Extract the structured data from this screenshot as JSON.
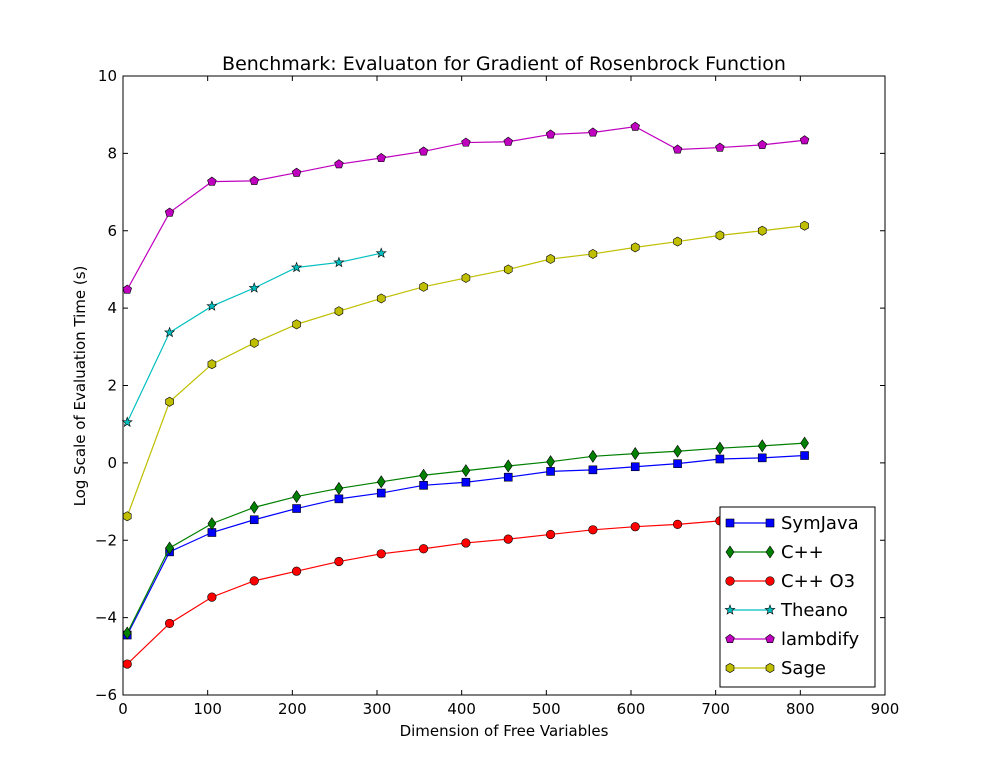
{
  "chart_data": {
    "type": "line",
    "title": "Benchmark: Evaluaton for Gradient of Rosenbrock Function",
    "xlabel": "Dimension of Free Variables",
    "ylabel": "Log Scale of Evaluation Time (s)",
    "xlim": [
      0,
      900
    ],
    "ylim": [
      -6,
      10
    ],
    "xticks": [
      0,
      100,
      200,
      300,
      400,
      500,
      600,
      700,
      800,
      900
    ],
    "yticks": [
      -6,
      -4,
      -2,
      0,
      2,
      4,
      6,
      8,
      10
    ],
    "grid": false,
    "legend_position": "lower-right",
    "series": [
      {
        "name": "SymJava",
        "color": "#0000ff",
        "marker": "square",
        "x": [
          5,
          55,
          105,
          155,
          205,
          255,
          305,
          355,
          405,
          455,
          505,
          555,
          605,
          655,
          705,
          755,
          805
        ],
        "y": [
          -4.45,
          -2.3,
          -1.8,
          -1.47,
          -1.18,
          -0.93,
          -0.78,
          -0.58,
          -0.5,
          -0.37,
          -0.22,
          -0.18,
          -0.1,
          -0.02,
          0.1,
          0.13,
          0.19
        ]
      },
      {
        "name": "C++",
        "color": "#008000",
        "marker": "diamond",
        "x": [
          5,
          55,
          105,
          155,
          205,
          255,
          305,
          355,
          405,
          455,
          505,
          555,
          605,
          655,
          705,
          755,
          805
        ],
        "y": [
          -4.4,
          -2.2,
          -1.57,
          -1.15,
          -0.87,
          -0.66,
          -0.49,
          -0.32,
          -0.2,
          -0.08,
          0.03,
          0.17,
          0.24,
          0.3,
          0.38,
          0.44,
          0.51
        ]
      },
      {
        "name": "C++ O3",
        "color": "#ff0000",
        "marker": "circle",
        "x": [
          5,
          55,
          105,
          155,
          205,
          255,
          305,
          355,
          405,
          455,
          505,
          555,
          605,
          655,
          705,
          755,
          805
        ],
        "y": [
          -5.2,
          -4.15,
          -3.47,
          -3.05,
          -2.8,
          -2.55,
          -2.35,
          -2.22,
          -2.07,
          -1.97,
          -1.85,
          -1.73,
          -1.65,
          -1.59,
          -1.5,
          -1.44,
          -1.38
        ]
      },
      {
        "name": "Theano",
        "color": "#00bfbf",
        "marker": "star",
        "x": [
          5,
          55,
          105,
          155,
          205,
          255,
          305
        ],
        "y": [
          1.05,
          3.37,
          4.05,
          4.52,
          5.05,
          5.18,
          5.42
        ]
      },
      {
        "name": "lambdify",
        "color": "#bf00bf",
        "marker": "pentagon",
        "x": [
          5,
          55,
          105,
          155,
          205,
          255,
          305,
          355,
          405,
          455,
          505,
          555,
          605,
          655,
          705,
          755,
          805
        ],
        "y": [
          4.48,
          6.47,
          7.27,
          7.29,
          7.5,
          7.72,
          7.88,
          8.05,
          8.28,
          8.3,
          8.49,
          8.54,
          8.69,
          8.1,
          8.15,
          8.22,
          8.34
        ]
      },
      {
        "name": "Sage",
        "color": "#bfbf00",
        "marker": "hexagon",
        "x": [
          5,
          55,
          105,
          155,
          205,
          255,
          305,
          355,
          405,
          455,
          505,
          555,
          605,
          655,
          705,
          755,
          805
        ],
        "y": [
          -1.38,
          1.58,
          2.55,
          3.1,
          3.58,
          3.92,
          4.25,
          4.55,
          4.78,
          5.0,
          5.27,
          5.4,
          5.57,
          5.72,
          5.88,
          6.0,
          6.13
        ]
      }
    ]
  }
}
